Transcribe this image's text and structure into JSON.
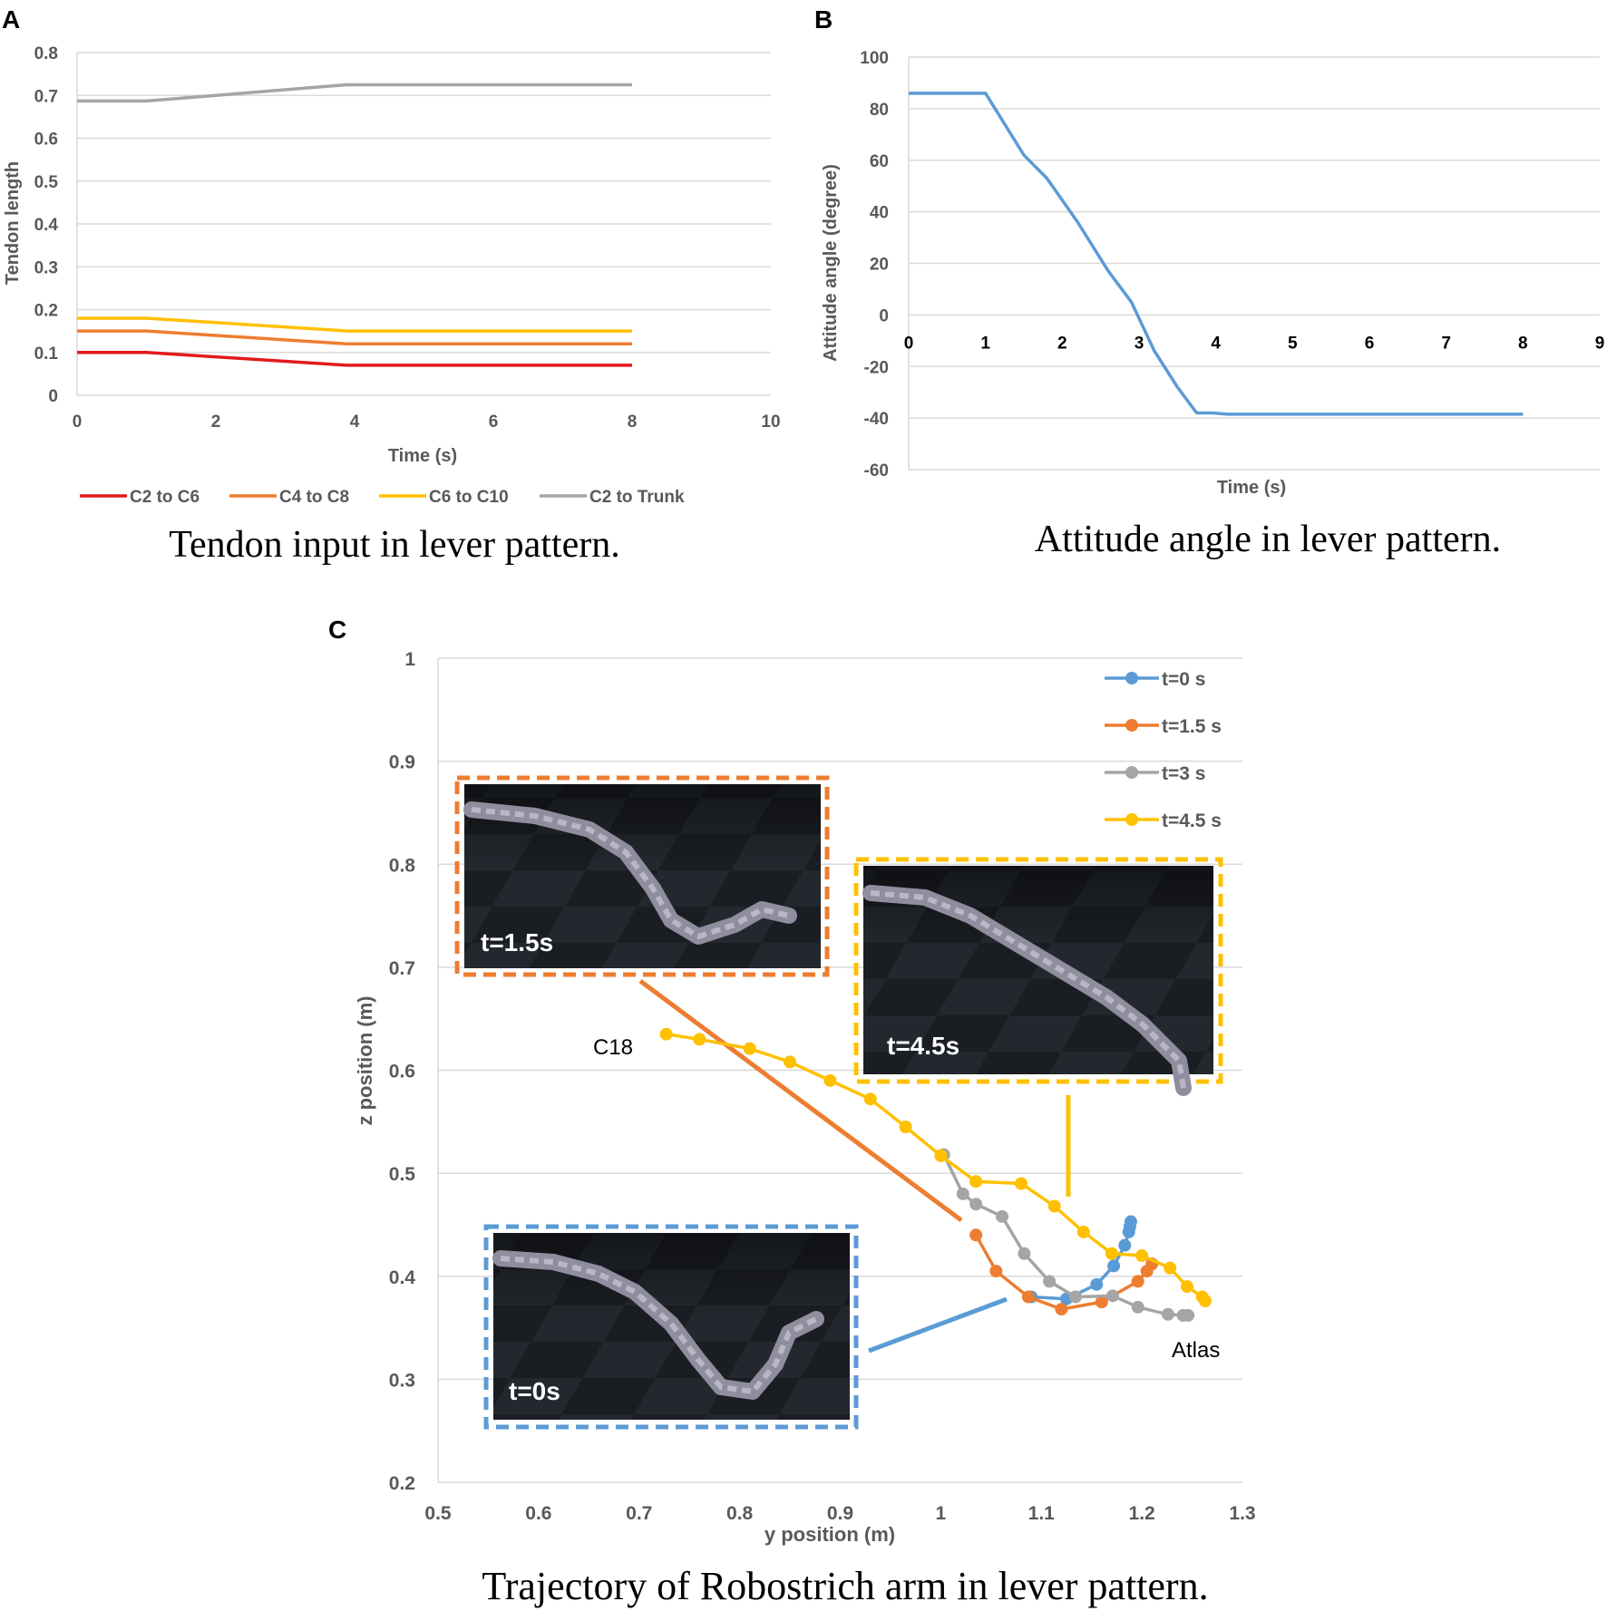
{
  "colors": {
    "red": "#E31A1C",
    "orange": "#ED7D31",
    "yellow": "#FFC000",
    "gray": "#A5A5A5",
    "blue": "#5B9BD5",
    "grid": "#D9D9D9",
    "axis_text": "#595959"
  },
  "panel_a": {
    "letter": "A",
    "caption": "Tendon input in lever pattern.",
    "chart_data": {
      "type": "line",
      "title": "",
      "xlabel": "Time (s)",
      "ylabel": "Tendon length",
      "xlim": [
        0,
        10
      ],
      "ylim": [
        0,
        0.8
      ],
      "xticks": [
        "0",
        "2",
        "4",
        "6",
        "8",
        "10"
      ],
      "yticks": [
        "0",
        "0.1",
        "0.2",
        "0.3",
        "0.4",
        "0.5",
        "0.6",
        "0.7",
        "0.8"
      ],
      "legend_position": "bottom",
      "series": [
        {
          "name": "C2 to C6",
          "color": "#E31A1C",
          "x": [
            0,
            1,
            3.9,
            8
          ],
          "y": [
            0.1,
            0.1,
            0.07,
            0.07
          ]
        },
        {
          "name": "C4 to C8",
          "color": "#ED7D31",
          "x": [
            0,
            1,
            3.9,
            8
          ],
          "y": [
            0.15,
            0.15,
            0.12,
            0.12
          ]
        },
        {
          "name": "C6 to C10",
          "color": "#FFC000",
          "x": [
            0,
            1,
            3.9,
            8
          ],
          "y": [
            0.18,
            0.18,
            0.15,
            0.15
          ]
        },
        {
          "name": "C2 to Trunk",
          "color": "#A5A5A5",
          "x": [
            0,
            1,
            3.9,
            8
          ],
          "y": [
            0.687,
            0.687,
            0.725,
            0.725
          ]
        }
      ]
    }
  },
  "panel_b": {
    "letter": "B",
    "caption": "Attitude angle in lever pattern.",
    "chart_data": {
      "type": "line",
      "title": "",
      "xlabel": "Time (s)",
      "ylabel": "Attitude angle (degree)",
      "xlim": [
        0,
        9
      ],
      "ylim": [
        -60,
        100
      ],
      "xticks": [
        "0",
        "1",
        "2",
        "3",
        "4",
        "5",
        "6",
        "7",
        "8",
        "9"
      ],
      "yticks": [
        "-60",
        "-40",
        "-20",
        "0",
        "20",
        "40",
        "60",
        "80",
        "100"
      ],
      "series": [
        {
          "name": "Attitude angle",
          "color": "#5B9BD5",
          "x": [
            0,
            1,
            1.5,
            1.8,
            2.2,
            2.6,
            2.9,
            3.2,
            3.5,
            3.75,
            3.95,
            4.15,
            8
          ],
          "y": [
            86,
            86,
            62,
            53,
            36,
            17,
            5,
            -14,
            -28,
            -38,
            -38,
            -38.5,
            -38.5
          ]
        }
      ]
    }
  },
  "panel_c": {
    "letter": "C",
    "caption": "Trajectory of Robostrich arm in lever pattern.",
    "annotations": {
      "c18": "C18",
      "atlas": "Atlas"
    },
    "insets": {
      "t15": "t=1.5s",
      "t45": "t=4.5s",
      "t0": "t=0s"
    },
    "chart_data": {
      "type": "scatter",
      "title": "",
      "xlabel": "y position (m)",
      "ylabel": "z position (m)",
      "xlim": [
        0.5,
        1.3
      ],
      "ylim": [
        0.2,
        1.0
      ],
      "xticks": [
        "0.5",
        "0.6",
        "0.7",
        "0.8",
        "0.9",
        "1",
        "1.1",
        "1.2",
        "1.3"
      ],
      "yticks": [
        "0.2",
        "0.3",
        "0.4",
        "0.5",
        "0.6",
        "0.7",
        "0.8",
        "0.9",
        "1"
      ],
      "legend_position": "top-right",
      "series": [
        {
          "name": "t=0 s",
          "color": "#5B9BD5",
          "x": [
            1.09,
            1.125,
            1.155,
            1.172,
            1.183,
            1.187,
            1.188,
            1.189
          ],
          "y": [
            0.38,
            0.378,
            0.392,
            0.41,
            0.43,
            0.443,
            0.448,
            0.453
          ]
        },
        {
          "name": "t=1.5 s",
          "color": "#ED7D31",
          "x": [
            1.035,
            1.055,
            1.087,
            1.12,
            1.16,
            1.196,
            1.205,
            1.21
          ],
          "y": [
            0.44,
            0.405,
            0.38,
            0.368,
            0.375,
            0.395,
            0.405,
            0.412
          ]
        },
        {
          "name": "t=3 s",
          "color": "#A5A5A5",
          "x": [
            1.003,
            1.022,
            1.035,
            1.061,
            1.083,
            1.108,
            1.134,
            1.171,
            1.196,
            1.226,
            1.241,
            1.246
          ],
          "y": [
            0.518,
            0.48,
            0.47,
            0.458,
            0.422,
            0.395,
            0.38,
            0.381,
            0.37,
            0.363,
            0.362,
            0.362
          ]
        },
        {
          "name": "t=4.5 s",
          "color": "#FFC000",
          "x": [
            0.727,
            0.76,
            0.81,
            0.85,
            0.89,
            0.93,
            0.965,
            1.0,
            1.035,
            1.08,
            1.113,
            1.142,
            1.17,
            1.2,
            1.228,
            1.245,
            1.26,
            1.263
          ],
          "y": [
            0.635,
            0.63,
            0.621,
            0.608,
            0.59,
            0.572,
            0.545,
            0.517,
            0.492,
            0.49,
            0.468,
            0.443,
            0.422,
            0.42,
            0.408,
            0.39,
            0.38,
            0.376
          ]
        }
      ]
    }
  }
}
